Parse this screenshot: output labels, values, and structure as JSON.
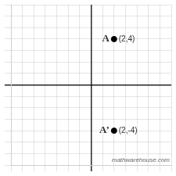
{
  "chart_data": {
    "type": "scatter",
    "x": [
      2,
      2
    ],
    "values": [
      4,
      -4
    ],
    "color": "#000000",
    "xlim": [
      -7,
      7
    ],
    "ylim": [
      -7,
      7
    ],
    "xticks": [
      -7,
      -6,
      -5,
      -4,
      -3,
      -2,
      -1,
      0,
      1,
      2,
      3,
      4,
      5,
      6,
      7
    ],
    "yticks": [
      -7,
      -6,
      -5,
      -4,
      -3,
      -2,
      -1,
      0,
      1,
      2,
      3,
      4,
      5,
      6,
      7
    ],
    "grid": true,
    "tick_labels": false,
    "annotations": [
      {
        "text": "A",
        "x": 2,
        "y": 4
      },
      {
        "text": "(2,4)",
        "x": 2,
        "y": 4
      },
      {
        "text": "A’",
        "x": 2,
        "y": -4
      },
      {
        "text": "(2,-4)",
        "x": 2,
        "y": -4
      },
      {
        "text": "mathwarehouse.com"
      }
    ]
  }
}
